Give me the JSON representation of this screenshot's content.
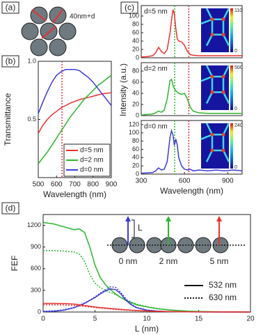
{
  "diagram_a": {
    "panel_label": "(a)",
    "annotation": "40nm+d"
  },
  "chart_data": [
    {
      "type": "line",
      "panel_label": "(b)",
      "ylabel": "Transmittance",
      "xlabel": "Wavelength (nm)",
      "x": [
        500,
        525,
        550,
        575,
        600,
        625,
        650,
        675,
        700,
        725,
        750,
        775,
        800,
        825,
        850,
        875,
        900
      ],
      "xlim": [
        500,
        900
      ],
      "xticks": [
        500,
        600,
        700,
        800,
        900
      ],
      "ylim": [
        0,
        1
      ],
      "yticks": [
        0.5,
        {
          "value": 1,
          "label": "1.0"
        }
      ],
      "legend": "lower right",
      "vlines": [
        {
          "x": 630,
          "color": "#e8312f",
          "dash": "dotted"
        }
      ],
      "series": [
        {
          "name": "d=5 nm",
          "color": "#e8312f",
          "dash": "solid",
          "values": [
            0.38,
            0.45,
            0.5,
            0.54,
            0.57,
            0.6,
            0.62,
            0.64,
            0.655,
            0.67,
            0.68,
            0.69,
            0.7,
            0.71,
            0.72,
            0.725,
            0.73
          ]
        },
        {
          "name": "d=2 nm",
          "color": "#2db52d",
          "dash": "solid",
          "values": [
            0.12,
            0.17,
            0.22,
            0.28,
            0.34,
            0.4,
            0.46,
            0.52,
            0.57,
            0.62,
            0.67,
            0.71,
            0.75,
            0.79,
            0.82,
            0.85,
            0.88
          ]
        },
        {
          "name": "d=0 nm",
          "color": "#3a3ad6",
          "dash": "solid",
          "values": [
            0.55,
            0.65,
            0.74,
            0.82,
            0.88,
            0.91,
            0.93,
            0.93,
            0.93,
            0.92,
            0.89,
            0.86,
            0.82,
            0.77,
            0.72,
            0.67,
            0.62
          ]
        }
      ]
    },
    {
      "type": "line",
      "panel_label": "(c)",
      "annotation": "d=5 nm",
      "ylabel": "Intensity (a.u.)",
      "x": [
        300,
        340,
        380,
        400,
        420,
        440,
        460,
        480,
        500,
        510,
        520,
        530,
        540,
        550,
        560,
        580,
        600,
        620,
        640,
        660,
        700,
        760,
        820,
        880,
        940,
        1000
      ],
      "xlim": [
        300,
        1000
      ],
      "ylim": [
        0,
        125
      ],
      "yticks": [
        0,
        20,
        40,
        60,
        80,
        100
      ],
      "vlines": [
        {
          "x": 532,
          "color": "#2db52d",
          "dash": "dotted"
        },
        {
          "x": 630,
          "color": "#e8312f",
          "dash": "dotted"
        }
      ],
      "inset_colorbar": {
        "max": 110,
        "min": 0
      },
      "series": [
        {
          "color": "#e8312f",
          "dash": "solid",
          "values": [
            2,
            3,
            5,
            12,
            25,
            15,
            10,
            20,
            60,
            90,
            115,
            105,
            70,
            45,
            40,
            38,
            30,
            15,
            8,
            6,
            5,
            5,
            5,
            5,
            5,
            5
          ]
        }
      ]
    },
    {
      "type": "line",
      "annotation": "d=2 nm",
      "x": [
        300,
        340,
        380,
        400,
        420,
        440,
        460,
        480,
        500,
        510,
        520,
        530,
        540,
        550,
        560,
        580,
        600,
        620,
        640,
        660,
        700,
        760,
        820,
        880,
        940,
        1000
      ],
      "xlim": [
        300,
        1000
      ],
      "ylim": [
        0,
        95
      ],
      "yticks": [
        0,
        20,
        40,
        60,
        80
      ],
      "vlines": [
        {
          "x": 532,
          "color": "#2db52d",
          "dash": "dotted"
        },
        {
          "x": 630,
          "color": "#e8312f",
          "dash": "dotted"
        }
      ],
      "inset_colorbar": {
        "max": 500,
        "min": 0
      },
      "series": [
        {
          "color": "#2db52d",
          "dash": "solid",
          "values": [
            1,
            2,
            3,
            5,
            8,
            6,
            10,
            30,
            63,
            65,
            55,
            48,
            45,
            42,
            40,
            38,
            40,
            30,
            15,
            8,
            5,
            4,
            4,
            4,
            4,
            4
          ]
        }
      ]
    },
    {
      "type": "line",
      "annotation": "d=0 nm",
      "xlabel": "Wavelength (nm)",
      "x": [
        300,
        340,
        380,
        400,
        420,
        440,
        460,
        480,
        500,
        510,
        520,
        530,
        540,
        550,
        560,
        580,
        600,
        620,
        640,
        660,
        700,
        760,
        820,
        880,
        940,
        1000
      ],
      "xlim": [
        300,
        1000
      ],
      "xticks": [
        300,
        600,
        900
      ],
      "ylim": [
        0,
        130
      ],
      "yticks": [
        0,
        20,
        40,
        60,
        80,
        100,
        120
      ],
      "vlines": [
        {
          "x": 532,
          "color": "#2db52d",
          "dash": "dotted"
        },
        {
          "x": 630,
          "color": "#e8312f",
          "dash": "dotted"
        }
      ],
      "inset_colorbar": {
        "max": 240,
        "min": 0
      },
      "series": [
        {
          "color": "#3a3ad6",
          "dash": "solid",
          "values": [
            2,
            3,
            4,
            8,
            15,
            10,
            12,
            30,
            90,
            105,
            95,
            70,
            85,
            70,
            40,
            20,
            12,
            10,
            12,
            8,
            10,
            8,
            10,
            8,
            10,
            8
          ]
        }
      ]
    },
    {
      "type": "line",
      "panel_label": "(d)",
      "ylabel": "FEF",
      "xlabel": "L (nm)",
      "x": [
        0,
        1,
        2,
        3,
        3.5,
        4,
        4.5,
        5,
        5.5,
        6,
        6.5,
        7,
        7.5,
        8,
        8.5,
        9,
        10,
        11,
        12,
        13,
        14,
        15,
        17,
        20
      ],
      "xlim": [
        0,
        20
      ],
      "xticks": [
        0,
        5,
        10,
        15,
        20
      ],
      "ylim": [
        0,
        1350
      ],
      "yticks": [
        0,
        300,
        600,
        900,
        1200
      ],
      "inset_labels": [
        "0 nm",
        "2 nm",
        "5 nm"
      ],
      "inset_length_label": "L",
      "legend_entries": [
        {
          "label": "532 nm",
          "dash": "solid"
        },
        {
          "label": "630 nm",
          "dash": "dotted"
        }
      ],
      "series": [
        {
          "color": "#2db52d",
          "dash": "solid",
          "values": [
            1240,
            1220,
            1180,
            1140,
            1150,
            1100,
            900,
            650,
            480,
            380,
            310,
            250,
            200,
            160,
            130,
            100,
            70,
            45,
            30,
            20,
            12,
            8,
            3,
            0
          ]
        },
        {
          "color": "#2db52d",
          "dash": "dotted",
          "values": [
            850,
            850,
            845,
            830,
            800,
            700,
            520,
            400,
            340,
            300,
            270,
            240,
            200,
            170,
            140,
            110,
            75,
            50,
            32,
            20,
            12,
            8,
            3,
            0
          ]
        },
        {
          "color": "#3a3ad6",
          "dash": "solid",
          "values": [
            5,
            10,
            25,
            60,
            90,
            120,
            160,
            200,
            250,
            290,
            320,
            310,
            250,
            160,
            100,
            60,
            25,
            12,
            6,
            3,
            2,
            1,
            0,
            0
          ]
        },
        {
          "color": "#3a3ad6",
          "dash": "dotted",
          "values": [
            10,
            15,
            30,
            65,
            95,
            125,
            165,
            210,
            260,
            305,
            350,
            340,
            270,
            180,
            110,
            65,
            28,
            14,
            7,
            3,
            2,
            1,
            0,
            0
          ]
        },
        {
          "color": "#e8312f",
          "dash": "solid",
          "values": [
            120,
            120,
            118,
            110,
            100,
            90,
            80,
            70,
            62,
            55,
            48,
            42,
            36,
            30,
            25,
            21,
            15,
            10,
            7,
            5,
            3,
            2,
            1,
            0
          ]
        },
        {
          "color": "#e8312f",
          "dash": "dotted",
          "values": [
            100,
            100,
            98,
            92,
            85,
            78,
            70,
            62,
            55,
            48,
            42,
            36,
            30,
            26,
            22,
            18,
            12,
            8,
            5,
            4,
            3,
            2,
            1,
            0
          ]
        }
      ]
    }
  ]
}
